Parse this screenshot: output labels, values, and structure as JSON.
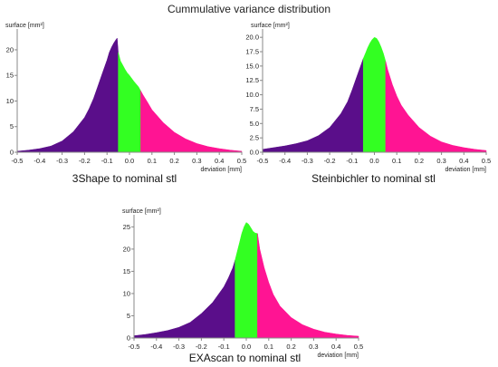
{
  "title": "Cummulative variance distribution",
  "colors": {
    "left": "#5a0e8a",
    "center": "#33ff22",
    "right": "#ff1493",
    "axis": "#888888",
    "text": "#222222"
  },
  "chart_data": [
    {
      "type": "area",
      "caption": "3Shape to nominal stl",
      "xlabel": "deviation [mm]",
      "ylabel": "surface [mm²]",
      "xlim": [
        -0.5,
        0.5
      ],
      "ylim": [
        0,
        23
      ],
      "x_ticks": [
        "-0.5",
        "-0.4",
        "-0.3",
        "-0.2",
        "-0.1",
        "0.0",
        "0.1",
        "0.2",
        "0.3",
        "0.4",
        "0.5"
      ],
      "y_ticks": [
        "0",
        "5",
        "10",
        "15",
        "20"
      ],
      "bands": [
        -0.05,
        0.05
      ],
      "x": [
        -0.5,
        -0.45,
        -0.4,
        -0.35,
        -0.3,
        -0.25,
        -0.2,
        -0.18,
        -0.16,
        -0.14,
        -0.12,
        -0.1,
        -0.09,
        -0.08,
        -0.07,
        -0.06,
        -0.055,
        -0.05,
        -0.04,
        -0.03,
        -0.02,
        -0.01,
        0.0,
        0.02,
        0.04,
        0.05,
        0.06,
        0.08,
        0.1,
        0.15,
        0.2,
        0.25,
        0.3,
        0.35,
        0.4,
        0.45,
        0.5
      ],
      "y": [
        0.2,
        0.4,
        0.7,
        1.2,
        2.2,
        4.0,
        6.8,
        8.5,
        10.5,
        13.0,
        15.5,
        18.0,
        19.5,
        20.5,
        21.3,
        22.0,
        22.3,
        19.5,
        17.8,
        17.0,
        16.2,
        15.5,
        15.0,
        13.8,
        12.8,
        12.0,
        11.2,
        9.8,
        8.3,
        5.8,
        3.9,
        2.6,
        1.7,
        1.1,
        0.7,
        0.4,
        0.2
      ]
    },
    {
      "type": "area",
      "caption": "Steinbichler to nominal stl",
      "xlabel": "deviation [mm]",
      "ylabel": "surface [mm²]",
      "xlim": [
        -0.5,
        0.5
      ],
      "ylim": [
        0,
        20.5
      ],
      "x_ticks": [
        "-0.5",
        "-0.4",
        "-0.3",
        "-0.2",
        "-0.1",
        "0.0",
        "0.1",
        "0.2",
        "0.3",
        "0.4",
        "0.5"
      ],
      "y_ticks": [
        "0.0",
        "2.5",
        "5.0",
        "7.5",
        "10.0",
        "12.5",
        "15.0",
        "17.5",
        "20.0"
      ],
      "bands": [
        -0.05,
        0.05
      ],
      "x": [
        -0.5,
        -0.45,
        -0.4,
        -0.35,
        -0.3,
        -0.25,
        -0.2,
        -0.15,
        -0.12,
        -0.1,
        -0.08,
        -0.06,
        -0.05,
        -0.04,
        -0.03,
        -0.02,
        -0.01,
        0.0,
        0.01,
        0.02,
        0.03,
        0.04,
        0.05,
        0.06,
        0.08,
        0.1,
        0.12,
        0.15,
        0.2,
        0.25,
        0.3,
        0.35,
        0.4,
        0.45,
        0.5
      ],
      "y": [
        0.5,
        0.8,
        1.1,
        1.5,
        2.0,
        2.9,
        4.3,
        6.7,
        8.8,
        10.8,
        13.0,
        15.2,
        16.3,
        17.2,
        18.2,
        19.0,
        19.6,
        20.0,
        19.8,
        19.2,
        18.3,
        17.2,
        15.8,
        14.3,
        11.8,
        9.8,
        8.2,
        6.5,
        4.3,
        2.8,
        1.8,
        1.2,
        0.8,
        0.5,
        0.3
      ]
    },
    {
      "type": "area",
      "caption": "EXAscan to nominal stl",
      "xlabel": "deviation [mm]",
      "ylabel": "surface [mm²]",
      "xlim": [
        -0.5,
        0.5
      ],
      "ylim": [
        0,
        26.5
      ],
      "x_ticks": [
        "-0.5",
        "-0.4",
        "-0.3",
        "-0.2",
        "-0.1",
        "0.0",
        "0.1",
        "0.2",
        "0.3",
        "0.4",
        "0.5"
      ],
      "y_ticks": [
        "0",
        "5",
        "10",
        "15",
        "20",
        "25"
      ],
      "bands": [
        -0.05,
        0.05
      ],
      "x": [
        -0.5,
        -0.45,
        -0.4,
        -0.35,
        -0.3,
        -0.25,
        -0.2,
        -0.15,
        -0.1,
        -0.08,
        -0.06,
        -0.05,
        -0.04,
        -0.03,
        -0.02,
        -0.01,
        0.0,
        0.01,
        0.02,
        0.03,
        0.04,
        0.05,
        0.06,
        0.08,
        0.1,
        0.12,
        0.15,
        0.2,
        0.25,
        0.3,
        0.35,
        0.4,
        0.45,
        0.5
      ],
      "y": [
        0.5,
        0.8,
        1.2,
        1.7,
        2.4,
        3.5,
        5.5,
        8.0,
        11.5,
        13.5,
        15.8,
        17.5,
        19.5,
        21.5,
        23.5,
        25.0,
        26.0,
        25.6,
        24.8,
        24.0,
        23.6,
        23.5,
        20.0,
        15.8,
        12.5,
        9.8,
        7.2,
        4.6,
        3.0,
        2.0,
        1.3,
        0.9,
        0.6,
        0.4
      ]
    }
  ]
}
